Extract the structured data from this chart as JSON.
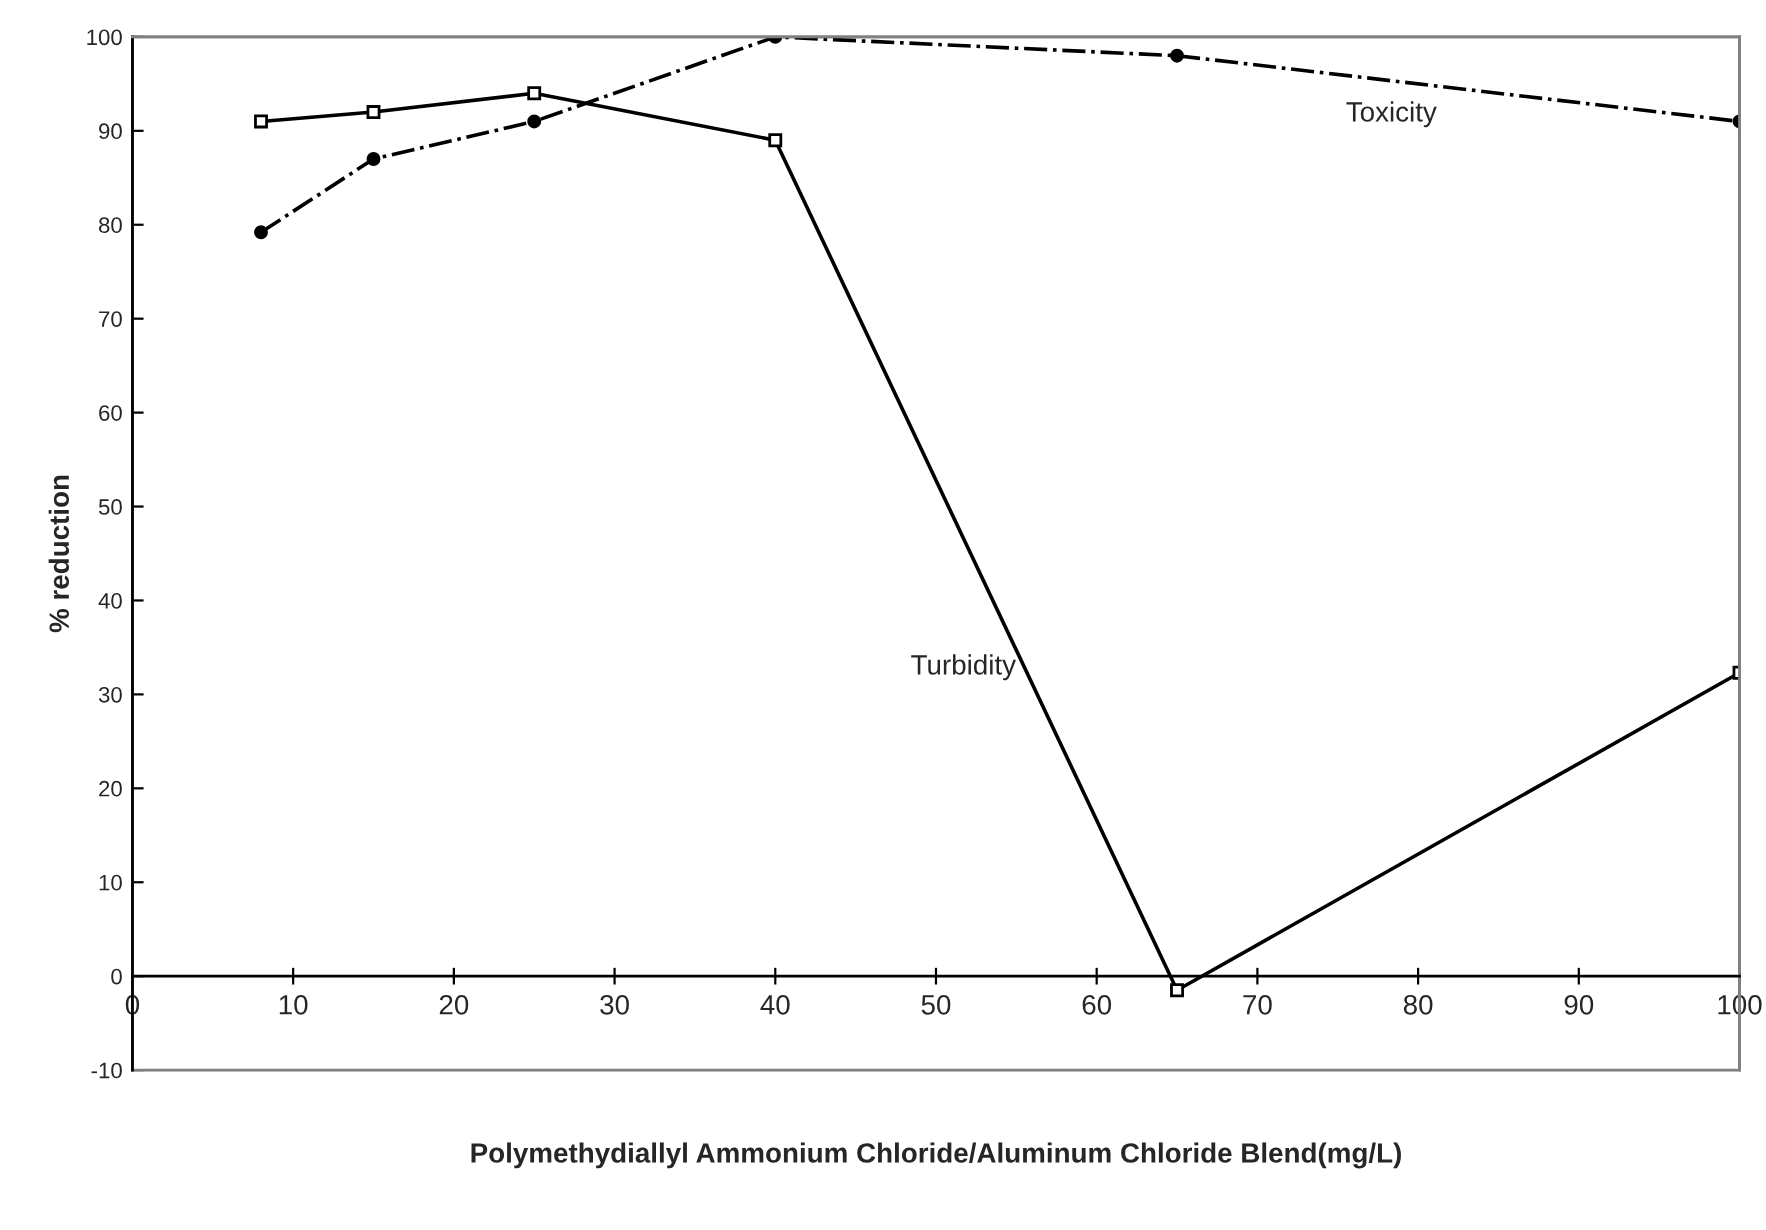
{
  "chart_data": {
    "type": "line",
    "xlabel": "Polymethydiallyl Ammonium Chloride/Aluminum Chloride Blend(mg/L)",
    "ylabel": "% reduction",
    "series": [
      {
        "name": "Turbidity",
        "color": "#000000",
        "marker": "square",
        "line_style": "solid",
        "x": [
          8,
          15,
          25,
          40,
          65,
          100
        ],
        "values": [
          91,
          92,
          94,
          89,
          -1.5,
          32.3
        ]
      },
      {
        "name": "Toxicity",
        "color": "#000000",
        "marker": "circle",
        "line_style": "dashdot",
        "x": [
          8,
          15,
          25,
          40,
          65,
          100
        ],
        "values": [
          79.2,
          87,
          91,
          100,
          98,
          91
        ]
      }
    ],
    "xlim": [
      0,
      100
    ],
    "xticks": [
      0,
      10,
      20,
      30,
      40,
      50,
      60,
      70,
      80,
      90,
      100
    ],
    "ylim": [
      -10,
      100
    ],
    "yticks": [
      -10,
      0,
      10,
      20,
      30,
      40,
      50,
      60,
      70,
      80,
      90,
      100
    ],
    "grid": false,
    "legend": false
  }
}
